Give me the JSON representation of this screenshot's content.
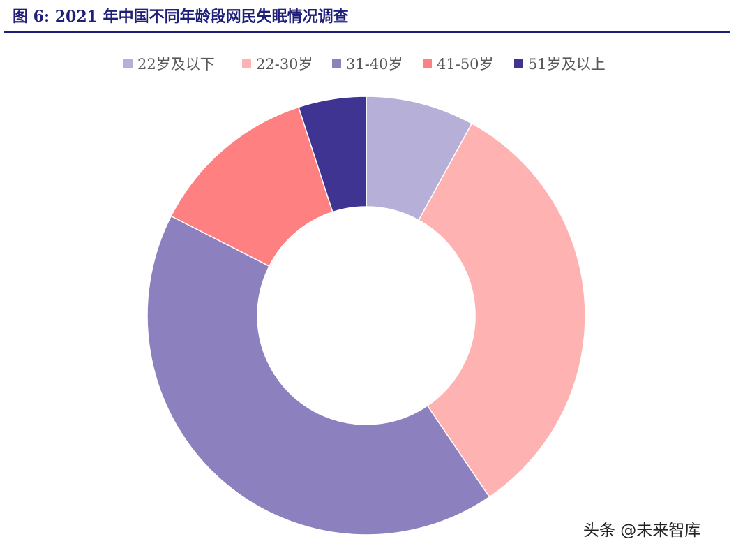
{
  "header": {
    "title": "图 6:  2021 年中国不同年龄段网民失眠情况调查"
  },
  "watermark": "头条 @未来智库",
  "chart_data": {
    "type": "pie",
    "donut": true,
    "legend_position": "top",
    "categories": [
      "22岁及以下",
      "22-30岁",
      "31-40岁",
      "41-50岁",
      "51岁及以上"
    ],
    "values": [
      8.0,
      32.5,
      42.0,
      12.5,
      5.0
    ],
    "colors": [
      "#b6b0d8",
      "#ffb2b2",
      "#8c80be",
      "#ff8080",
      "#3f3491"
    ]
  }
}
